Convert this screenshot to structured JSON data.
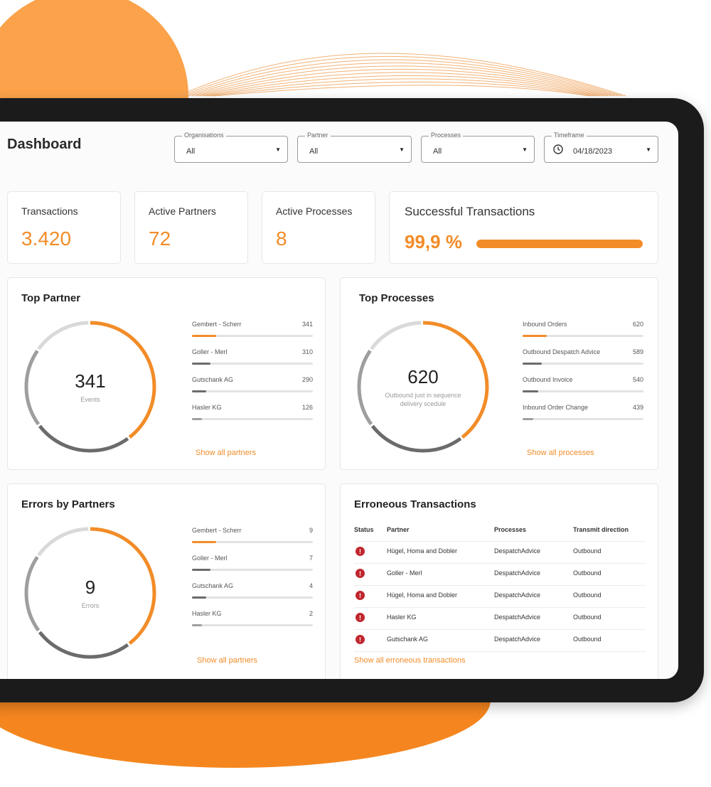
{
  "colors": {
    "accent": "#f28c28",
    "dark_segment": "#6b6b6b",
    "mid_segment": "#9e9e9e",
    "light_segment": "#d9d9d9",
    "error": "#c0262d"
  },
  "header": {
    "title": "Dashboard"
  },
  "filters": [
    {
      "label": "Organisations",
      "value": "All",
      "icon": "chevron-down-icon"
    },
    {
      "label": "Partner",
      "value": "All",
      "icon": "chevron-down-icon"
    },
    {
      "label": "Processes",
      "value": "All",
      "icon": "chevron-down-icon"
    },
    {
      "label": "Timeframe",
      "value": "04/18/2023",
      "icon": "clock-icon"
    }
  ],
  "kpis": [
    {
      "label": "Transactions",
      "value": "3.420"
    },
    {
      "label": "Active Partners",
      "value": "72"
    },
    {
      "label": "Active Processes",
      "value": "8"
    }
  ],
  "success": {
    "label": "Successful Transactions",
    "value": "99,9 %",
    "fraction": 0.999
  },
  "top_partner": {
    "title": "Top Partner",
    "center_value": "341",
    "center_label": "Events",
    "items": [
      {
        "name": "Gembert - Scherr",
        "count": "341",
        "fraction": 0.2,
        "color": "#f28c28"
      },
      {
        "name": "Goller - Merl",
        "count": "310",
        "fraction": 0.15,
        "color": "#6b6b6b"
      },
      {
        "name": "Gutschank AG",
        "count": "290",
        "fraction": 0.12,
        "color": "#6b6b6b"
      },
      {
        "name": "Hasler KG",
        "count": "126",
        "fraction": 0.08,
        "color": "#9e9e9e"
      }
    ],
    "link": "Show all partners"
  },
  "top_processes": {
    "title": "Top Processes",
    "center_value": "620",
    "center_label": "Outbound just in sequence delivery scedule",
    "items": [
      {
        "name": "Inbound Orders",
        "count": "620",
        "fraction": 0.2,
        "color": "#f28c28"
      },
      {
        "name": "Outbound Despatch Advice",
        "count": "589",
        "fraction": 0.16,
        "color": "#6b6b6b"
      },
      {
        "name": "Outbound Invoice",
        "count": "540",
        "fraction": 0.13,
        "color": "#6b6b6b"
      },
      {
        "name": "Inbound Order Change",
        "count": "439",
        "fraction": 0.09,
        "color": "#9e9e9e"
      }
    ],
    "link": "Show all processes"
  },
  "errors_by_partners": {
    "title": "Errors by Partners",
    "center_value": "9",
    "center_label": "Errors",
    "items": [
      {
        "name": "Gembert - Scherr",
        "count": "9",
        "fraction": 0.2,
        "color": "#f28c28"
      },
      {
        "name": "Goller - Merl",
        "count": "7",
        "fraction": 0.15,
        "color": "#6b6b6b"
      },
      {
        "name": "Gutschank AG",
        "count": "4",
        "fraction": 0.12,
        "color": "#6b6b6b"
      },
      {
        "name": "Hasler KG",
        "count": "2",
        "fraction": 0.08,
        "color": "#9e9e9e"
      }
    ],
    "link": "Show all partners"
  },
  "erroneous": {
    "title": "Erroneous Transactions",
    "columns": [
      "Status",
      "Partner",
      "Processes",
      "Transmit direction"
    ],
    "rows": [
      {
        "status": "!",
        "partner": "Hügel, Homa and Dobler",
        "process": "DespatchAdvice",
        "direction": "Outbound"
      },
      {
        "status": "!",
        "partner": "Goller - Merl",
        "process": "DespatchAdvice",
        "direction": "Outbound"
      },
      {
        "status": "!",
        "partner": "Hügel, Homa and Dobler",
        "process": "DespatchAdvice",
        "direction": "Outbound"
      },
      {
        "status": "!",
        "partner": "Hasler KG",
        "process": "DespatchAdvice",
        "direction": "Outbound"
      },
      {
        "status": "!",
        "partner": "Gutschank AG",
        "process": "DespatchAdvice",
        "direction": "Outbound"
      }
    ],
    "link": "Show all erroneous transactions"
  }
}
